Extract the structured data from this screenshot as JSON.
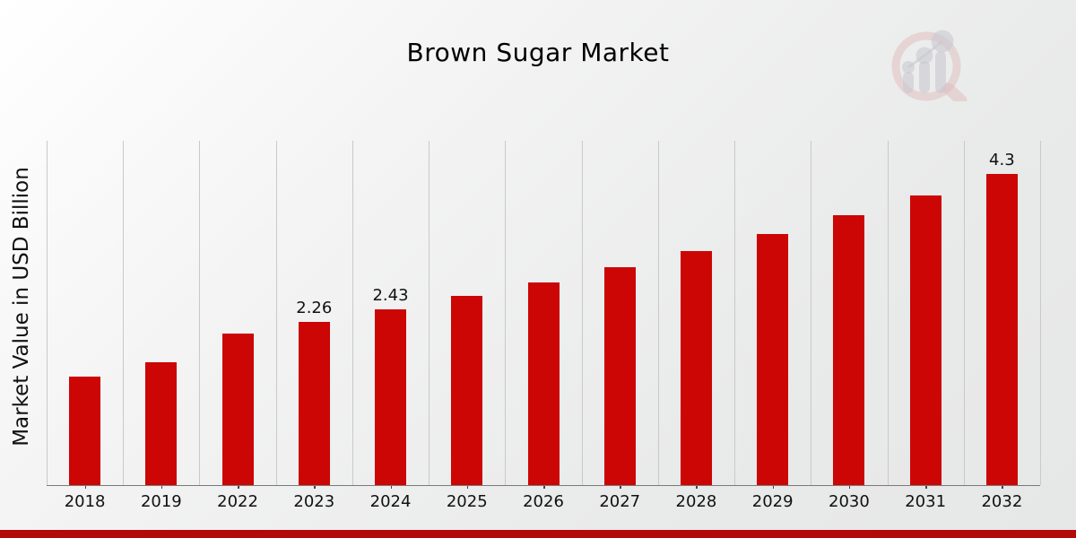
{
  "title": "Brown Sugar Market",
  "y_axis_label": "Market Value in USD Billion",
  "chart_data": {
    "type": "bar",
    "title": "Brown Sugar Market",
    "ylabel": "Market Value in USD Billion",
    "xlabel": "",
    "unit": "USD Billion",
    "categories": [
      "2018",
      "2019",
      "2022",
      "2023",
      "2024",
      "2025",
      "2026",
      "2027",
      "2028",
      "2029",
      "2030",
      "2031",
      "2032"
    ],
    "values": [
      1.5,
      1.7,
      2.1,
      2.26,
      2.43,
      2.61,
      2.8,
      3.01,
      3.24,
      3.47,
      3.73,
      4.0,
      4.3
    ],
    "data_labels": {
      "2023": "2.26",
      "2024": "2.43",
      "2032": "4.3"
    },
    "ylim": [
      0,
      4.76
    ],
    "grid": "vertical-only",
    "legend": "none"
  },
  "colors": {
    "bar": "#cc0505",
    "bottom_strip": "#b00a0a",
    "gridline": "#c9c9c9",
    "axis_line": "#7a7a7a",
    "tick": "#444444",
    "text": "#111111",
    "logo_pink": "#dfbcbc",
    "logo_gray": "#c6c6cd"
  },
  "logo": {
    "name": "mrfr-magnifier-bar-chart-logo"
  }
}
